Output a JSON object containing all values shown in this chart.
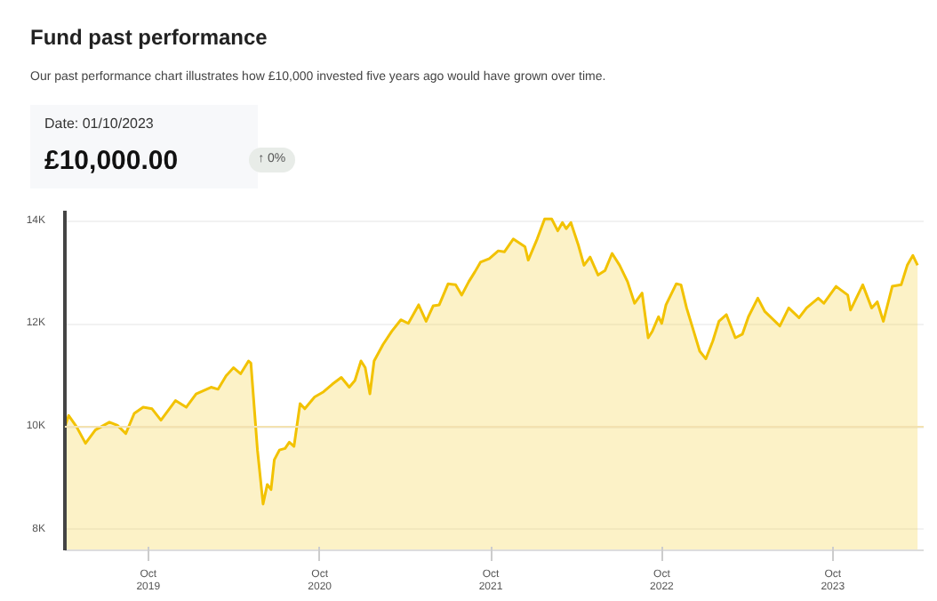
{
  "chart_data": {
    "type": "area",
    "title": "Fund past performance",
    "subtitle": "Our past performance chart illustrates how £10,000 invested five years ago would have grown over time.",
    "annotations": [
      "Date: 01/10/2023",
      "£10,000.00",
      "↑ 0%"
    ],
    "x": [
      "2019-04-06",
      "2019-04-14",
      "2019-05-01",
      "2019-05-20",
      "2019-06-10",
      "2019-07-10",
      "2019-07-27",
      "2019-08-14",
      "2019-09-01",
      "2019-09-20",
      "2019-10-09",
      "2019-10-28",
      "2019-11-28",
      "2019-12-21",
      "2020-01-11",
      "2020-02-12",
      "2020-02-27",
      "2020-03-15",
      "2020-03-31",
      "2020-04-15",
      "2020-05-02",
      "2020-05-07",
      "2020-05-21",
      "2020-06-02",
      "2020-06-11",
      "2020-06-19",
      "2020-06-26",
      "2020-07-07",
      "2020-07-19",
      "2020-07-28",
      "2020-08-07",
      "2020-08-20",
      "2020-08-30",
      "2020-09-20",
      "2020-10-09",
      "2020-10-28",
      "2020-11-16",
      "2020-12-03",
      "2020-12-15",
      "2020-12-28",
      "2021-01-06",
      "2021-01-16",
      "2021-01-25",
      "2021-02-13",
      "2021-03-04",
      "2021-03-23",
      "2021-04-08",
      "2021-04-30",
      "2021-05-16",
      "2021-05-31",
      "2021-06-13",
      "2021-07-02",
      "2021-07-18",
      "2021-07-31",
      "2021-08-15",
      "2021-08-28",
      "2021-09-09",
      "2021-09-28",
      "2021-10-17",
      "2021-10-30",
      "2021-11-18",
      "2021-12-13",
      "2021-12-20",
      "2022-01-08",
      "2022-01-24",
      "2022-02-08",
      "2022-02-21",
      "2022-03-03",
      "2022-03-11",
      "2022-03-21",
      "2022-04-06",
      "2022-04-18",
      "2022-05-01",
      "2022-05-18",
      "2022-06-02",
      "2022-06-17",
      "2022-07-03",
      "2022-07-20",
      "2022-08-04",
      "2022-08-20",
      "2022-09-02",
      "2022-09-11",
      "2022-09-24",
      "2022-10-01",
      "2022-10-10",
      "2022-11-01",
      "2022-11-11",
      "2022-11-23",
      "2022-12-08",
      "2022-12-21",
      "2023-01-03",
      "2023-01-18",
      "2023-01-31",
      "2023-02-16",
      "2023-03-07",
      "2023-03-22",
      "2023-04-04",
      "2023-04-24",
      "2023-05-09",
      "2023-06-10",
      "2023-06-29",
      "2023-07-21",
      "2023-08-06",
      "2023-08-31",
      "2023-09-12",
      "2023-10-08",
      "2023-11-02",
      "2023-11-08",
      "2023-12-04",
      "2023-12-23",
      "2024-01-04",
      "2024-01-17",
      "2024-02-05",
      "2024-02-24",
      "2024-03-08",
      "2024-03-20",
      "2024-03-30"
    ],
    "series": [
      {
        "color": "#f2c200",
        "values": [
          10000,
          10220,
          10000,
          9680,
          9940,
          10090,
          10030,
          9870,
          10260,
          10380,
          10350,
          10130,
          10510,
          10380,
          10640,
          10770,
          10730,
          10990,
          11150,
          11030,
          11280,
          11240,
          9550,
          8500,
          8880,
          8780,
          9360,
          9550,
          9580,
          9700,
          9620,
          10450,
          10350,
          10580,
          10680,
          10830,
          10960,
          10770,
          10900,
          11280,
          11150,
          10640,
          11280,
          11600,
          11860,
          12080,
          12010,
          12370,
          12050,
          12350,
          12370,
          12780,
          12760,
          12560,
          12820,
          13010,
          13200,
          13270,
          13420,
          13400,
          13650,
          13500,
          13240,
          13650,
          14040,
          14040,
          13810,
          13970,
          13850,
          13970,
          13530,
          13140,
          13300,
          12950,
          13040,
          13370,
          13140,
          12820,
          12400,
          12600,
          11730,
          11860,
          12140,
          12010,
          12370,
          12780,
          12760,
          12310,
          11860,
          11470,
          11320,
          11670,
          12050,
          12180,
          11730,
          11800,
          12140,
          12500,
          12240,
          11960,
          12310,
          12120,
          12310,
          12500,
          12400,
          12730,
          12560,
          12270,
          12760,
          12310,
          12430,
          12050,
          12730,
          12760,
          13140,
          13330,
          13140
        ]
      }
    ],
    "xlim": [
      "2019-04-06",
      "2024-04-12"
    ],
    "xticks": [
      {
        "value": "2019-10-01",
        "label": "Oct\n2019"
      },
      {
        "value": "2020-10-01",
        "label": "Oct\n2020"
      },
      {
        "value": "2021-10-01",
        "label": "Oct\n2021"
      },
      {
        "value": "2022-10-01",
        "label": "Oct\n2022"
      },
      {
        "value": "2023-10-01",
        "label": "Oct\n2023"
      }
    ],
    "ylim": [
      7600,
      14200
    ],
    "yticks": [
      {
        "value": 8000,
        "label": "8K"
      },
      {
        "value": 10000,
        "label": "10K"
      },
      {
        "value": 12000,
        "label": "12K"
      },
      {
        "value": 14000,
        "label": "14K"
      }
    ],
    "ref_lines": [
      {
        "axis": "y",
        "value": 10000,
        "color": "#f3e2b0"
      }
    ],
    "grid": "y"
  }
}
